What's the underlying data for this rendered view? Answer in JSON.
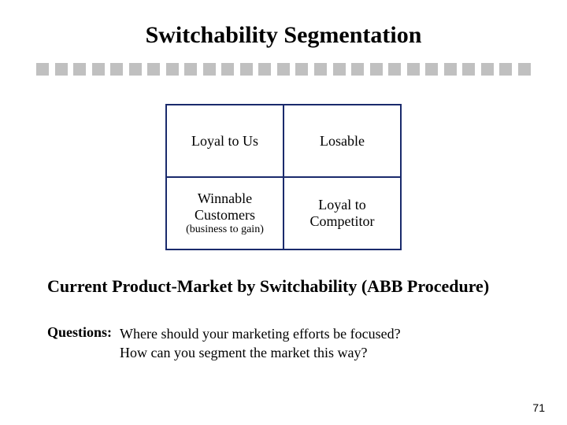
{
  "title": "Switchability Segmentation",
  "divider": {
    "count": 27,
    "color": "#c0c0c0",
    "size": 16
  },
  "matrix": {
    "border_color": "#1a2a6c",
    "cells": {
      "tl": {
        "main": "Loyal to Us",
        "sub": ""
      },
      "tr": {
        "main": "Losable",
        "sub": ""
      },
      "bl": {
        "main": "Winnable Customers",
        "sub": "(business to gain)"
      },
      "br": {
        "main": "Loyal to Competitor",
        "sub": ""
      }
    }
  },
  "subtitle": "Current Product-Market by Switchability (ABB Procedure)",
  "questions": {
    "label": "Questions:",
    "line1": "Where should your marketing efforts be focused?",
    "line2": "How can you segment the market this way?"
  },
  "page_number": "71"
}
